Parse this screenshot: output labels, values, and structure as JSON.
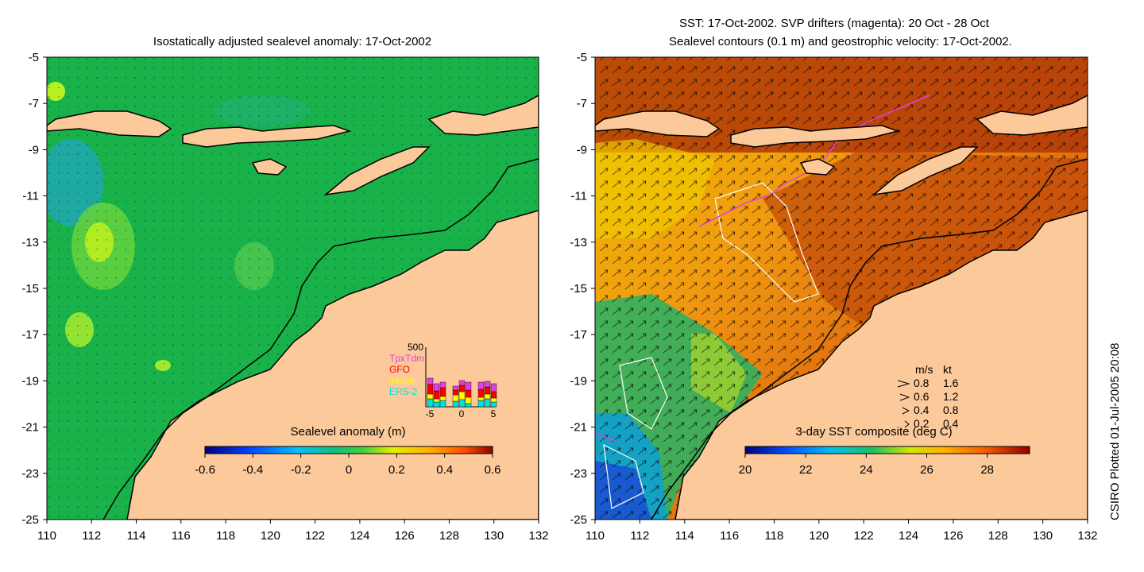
{
  "left_panel": {
    "title": "Isostatically adjusted sealevel anomaly: 17-Oct-2002",
    "y_ticks": [
      "-5",
      "-7",
      "-9",
      "-11",
      "-13",
      "-15",
      "-17",
      "-19",
      "-21",
      "-23",
      "-25"
    ],
    "x_ticks": [
      "110",
      "112",
      "114",
      "116",
      "118",
      "120",
      "122",
      "124",
      "126",
      "128",
      "130",
      "132"
    ],
    "colorbar": {
      "label": "Sealevel anomaly (m)",
      "ticks": [
        "-0.6",
        "-0.4",
        "-0.2",
        "0",
        "0.2",
        "0.4",
        "0.6"
      ],
      "range": [
        -0.6,
        0.6
      ]
    },
    "inset": {
      "ymax_label": "500",
      "legend": [
        {
          "label": "TpxTdm",
          "color": "#e040e0"
        },
        {
          "label": "GFO",
          "color": "#ff0000"
        },
        {
          "label": "Jason",
          "color": "#ffff00"
        },
        {
          "label": "ERS-2",
          "color": "#00e0e0"
        }
      ],
      "x_ticks": [
        "-5",
        "0",
        "5"
      ]
    }
  },
  "right_panel": {
    "title_line1": "SST: 17-Oct-2002. SVP drifters (magenta): 20 Oct - 28 Oct",
    "title_line2": "Sealevel contours (0.1 m) and geostrophic velocity: 17-Oct-2002.",
    "y_ticks": [
      "-5",
      "-7",
      "-9",
      "-11",
      "-13",
      "-15",
      "-17",
      "-19",
      "-21",
      "-23",
      "-25"
    ],
    "x_ticks": [
      "110",
      "112",
      "114",
      "116",
      "118",
      "120",
      "122",
      "124",
      "126",
      "128",
      "130",
      "132"
    ],
    "colorbar": {
      "label": "3-day SST composite (deg C)",
      "ticks": [
        "20",
        "22",
        "24",
        "26",
        "28"
      ],
      "range": [
        20,
        29.4
      ]
    },
    "velocity_legend": {
      "header_ms": "m/s",
      "header_kt": "kt",
      "rows": [
        {
          "ms": "0.8",
          "kt": "1.6"
        },
        {
          "ms": "0.6",
          "kt": "1.2"
        },
        {
          "ms": "0.4",
          "kt": "0.8"
        },
        {
          "ms": "0.2",
          "kt": "0.4"
        }
      ]
    }
  },
  "footer": {
    "credit": "CSIRO Plotted 01-Jul-2005 20:08"
  },
  "colors": {
    "land": "#fbc99a",
    "ssh_background": "#19b24a",
    "sst_warm": "#c8460a",
    "sst_cool": "#1a6ad8",
    "drifter": "#e040e0"
  }
}
